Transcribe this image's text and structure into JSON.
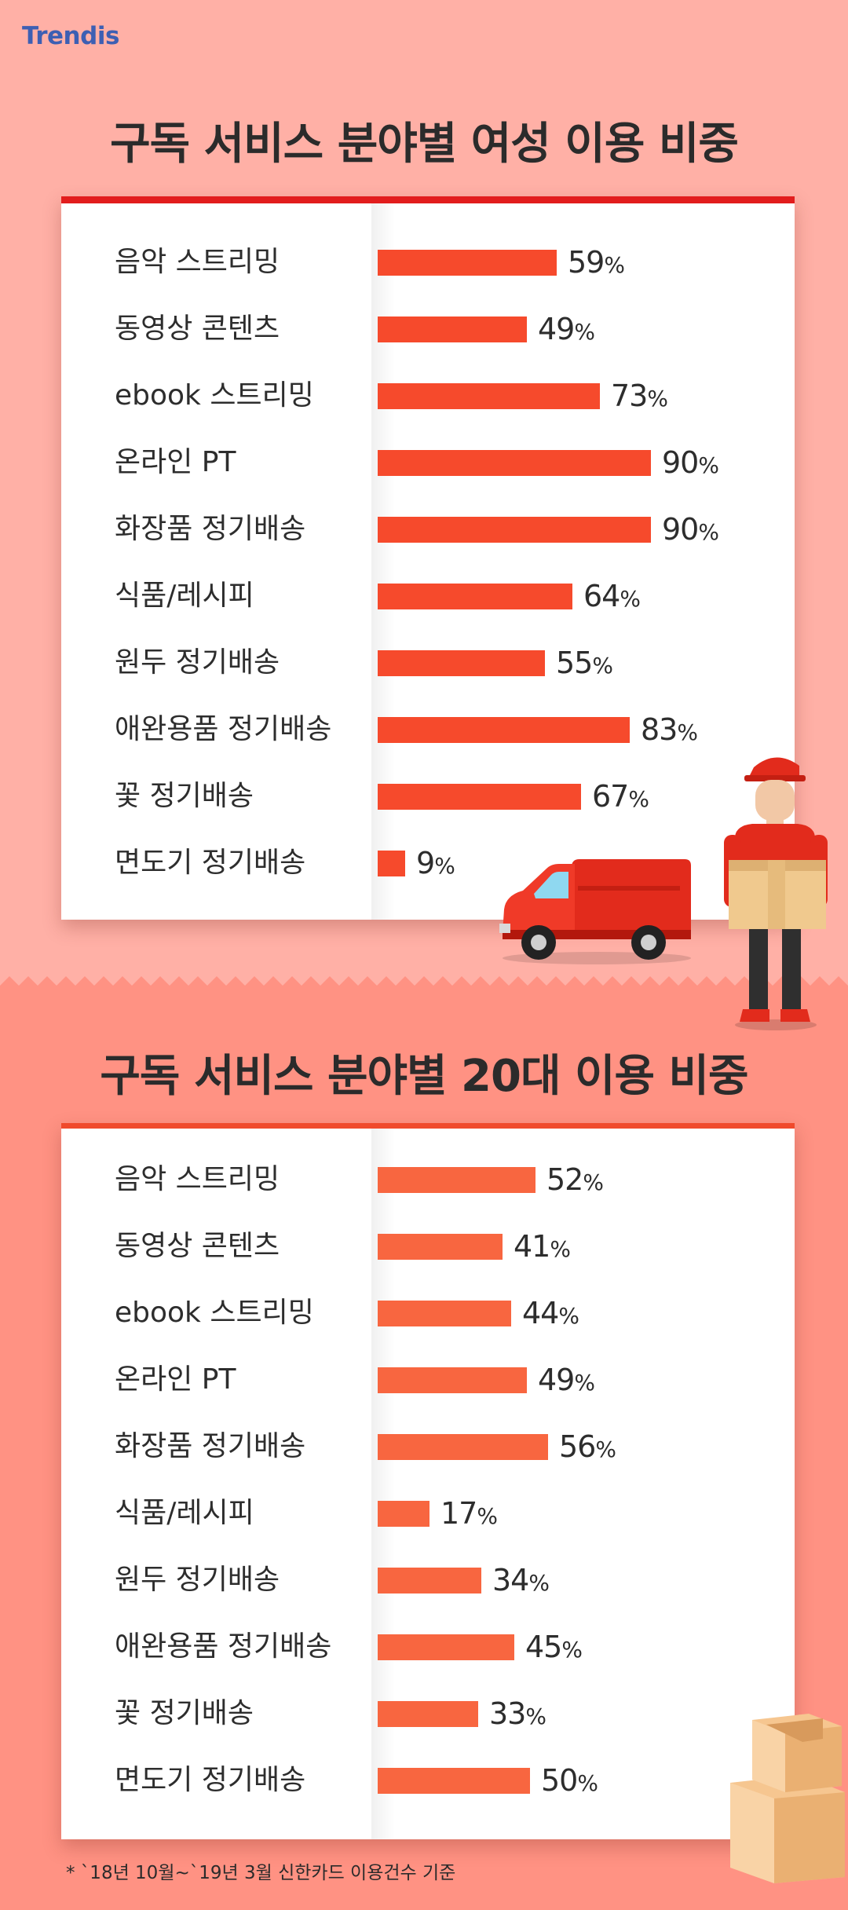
{
  "logo": "Trendis",
  "charts": [
    {
      "id": "women",
      "title": "구독 서비스 분야별 여성 이용 비중"
    },
    {
      "id": "twenties",
      "title": "구독 서비스 분야별 20대 이용 비중"
    }
  ],
  "colors": {
    "top_background": "#ffb0a6",
    "bottom_background": "#ff9283",
    "bar_top": "#f64a2c",
    "bar_bottom": "#f86640",
    "card_border_top": "#e21d1d"
  },
  "icons": [
    "delivery-van-icon",
    "delivery-man-icon",
    "cardboard-boxes-icon"
  ],
  "chart_data": [
    {
      "type": "bar",
      "orientation": "horizontal",
      "title": "구독 서비스 분야별 여성 이용 비중",
      "categories": [
        "음악 스트리밍",
        "동영상 콘텐츠",
        "ebook 스트리밍",
        "온라인 PT",
        "화장품 정기배송",
        "식품/레시피",
        "원두 정기배송",
        "애완용품 정기배송",
        "꽃 정기배송",
        "면도기 정기배송"
      ],
      "values": [
        59,
        49,
        73,
        90,
        90,
        64,
        55,
        83,
        67,
        9
      ],
      "unit": "%",
      "xlim": [
        0,
        100
      ],
      "grid": false
    },
    {
      "type": "bar",
      "orientation": "horizontal",
      "title": "구독 서비스 분야별 20대 이용 비중",
      "categories": [
        "음악 스트리밍",
        "동영상 콘텐츠",
        "ebook 스트리밍",
        "온라인 PT",
        "화장품 정기배송",
        "식품/레시피",
        "원두 정기배송",
        "애완용품 정기배송",
        "꽃 정기배송",
        "면도기 정기배송"
      ],
      "values": [
        52,
        41,
        44,
        49,
        56,
        17,
        34,
        45,
        33,
        50
      ],
      "unit": "%",
      "xlim": [
        0,
        100
      ],
      "grid": false
    }
  ],
  "footnote": "* `18년 10월~`19년 3월 신한카드 이용건수 기준"
}
